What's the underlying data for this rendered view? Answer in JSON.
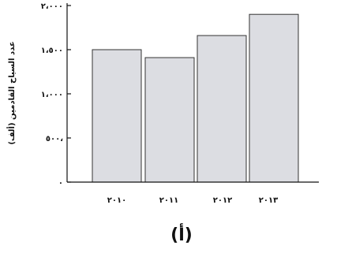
{
  "chart_data": {
    "type": "bar",
    "categories": [
      "٢٠١٠",
      "٢٠١١",
      "٢٠١٢",
      "٢٠١٣"
    ],
    "values": [
      1500,
      1410,
      1660,
      1900
    ],
    "ylabel": "عدد السياح القادمين (ألف)",
    "ylim": [
      0,
      2000
    ],
    "yticks": [
      0,
      500,
      1000,
      1500,
      2000
    ],
    "ytick_labels": [
      "٠",
      "٥٠٠،",
      "١،٠٠٠",
      "١،٥٠٠",
      "٢،٠٠٠"
    ],
    "grid": false,
    "bar_color": "#dcdde2"
  },
  "caption": "(أ)"
}
